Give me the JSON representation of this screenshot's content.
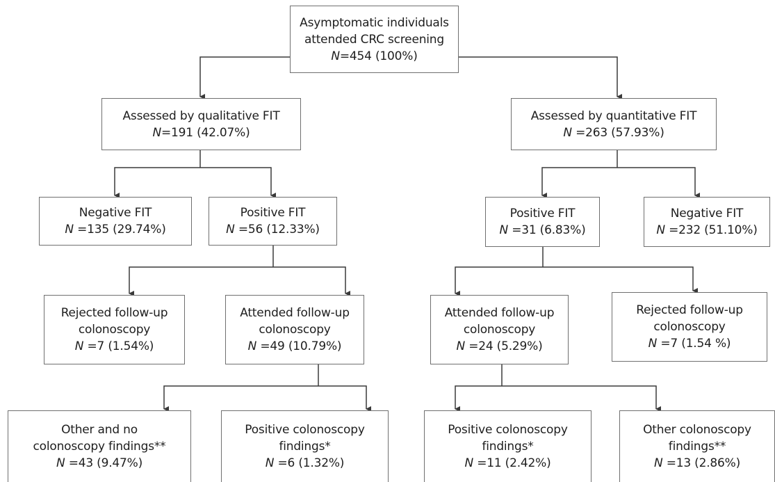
{
  "flowchart": {
    "root": {
      "line1": "Asymptomatic individuals",
      "line2": "attended CRC screening",
      "n_var": "N",
      "n_value": "=454 (100%)"
    },
    "qualitative": {
      "line1": "Assessed by qualitative FIT",
      "n_var": "N",
      "n_value": "=191 (42.07%)"
    },
    "quantitative": {
      "line1": "Assessed by quantitative FIT",
      "n_var": "N",
      "n_value": " =263 (57.93%)"
    },
    "qual_negative": {
      "line1": "Negative FIT",
      "n_var": "N",
      "n_value": " =135 (29.74%)"
    },
    "qual_positive": {
      "line1": "Positive FIT",
      "n_var": "N",
      "n_value": " =56 (12.33%)"
    },
    "quant_positive": {
      "line1": "Positive FIT",
      "n_var": "N",
      "n_value": " =31 (6.83%)"
    },
    "quant_negative": {
      "line1": "Negative FIT",
      "n_var": "N",
      "n_value": " =232 (51.10%)"
    },
    "qual_rejected": {
      "line1": "Rejected follow-up",
      "line2": "colonoscopy",
      "n_var": "N",
      "n_value": " =7 (1.54%)"
    },
    "qual_attended": {
      "line1": "Attended follow-up",
      "line2": "colonoscopy",
      "n_var": "N",
      "n_value": " =49 (10.79%)"
    },
    "quant_attended": {
      "line1": "Attended follow-up",
      "line2": "colonoscopy",
      "n_var": "N",
      "n_value": " =24 (5.29%)"
    },
    "quant_rejected": {
      "line1": "Rejected follow-up",
      "line2": "colonoscopy",
      "n_var": "N",
      "n_value": " =7 (1.54 %)"
    },
    "qual_other": {
      "line1": "Other and no",
      "line2": "colonoscopy findings**",
      "n_var": "N",
      "n_value": " =43 (9.47%)"
    },
    "qual_pos_col": {
      "line1": "Positive colonoscopy",
      "line2": "findings*",
      "n_var": "N",
      "n_value": " =6 (1.32%)"
    },
    "quant_pos_col": {
      "line1": "Positive colonoscopy",
      "line2": "findings*",
      "n_var": "N",
      "n_value": " =11 (2.42%)"
    },
    "quant_other": {
      "line1": "Other colonoscopy",
      "line2": "findings**",
      "n_var": "N",
      "n_value": " =13 (2.86%)"
    }
  },
  "colors": {
    "line": "#3a3a3a",
    "box_border": "#6f6f6f",
    "text": "#1e1e1e"
  }
}
